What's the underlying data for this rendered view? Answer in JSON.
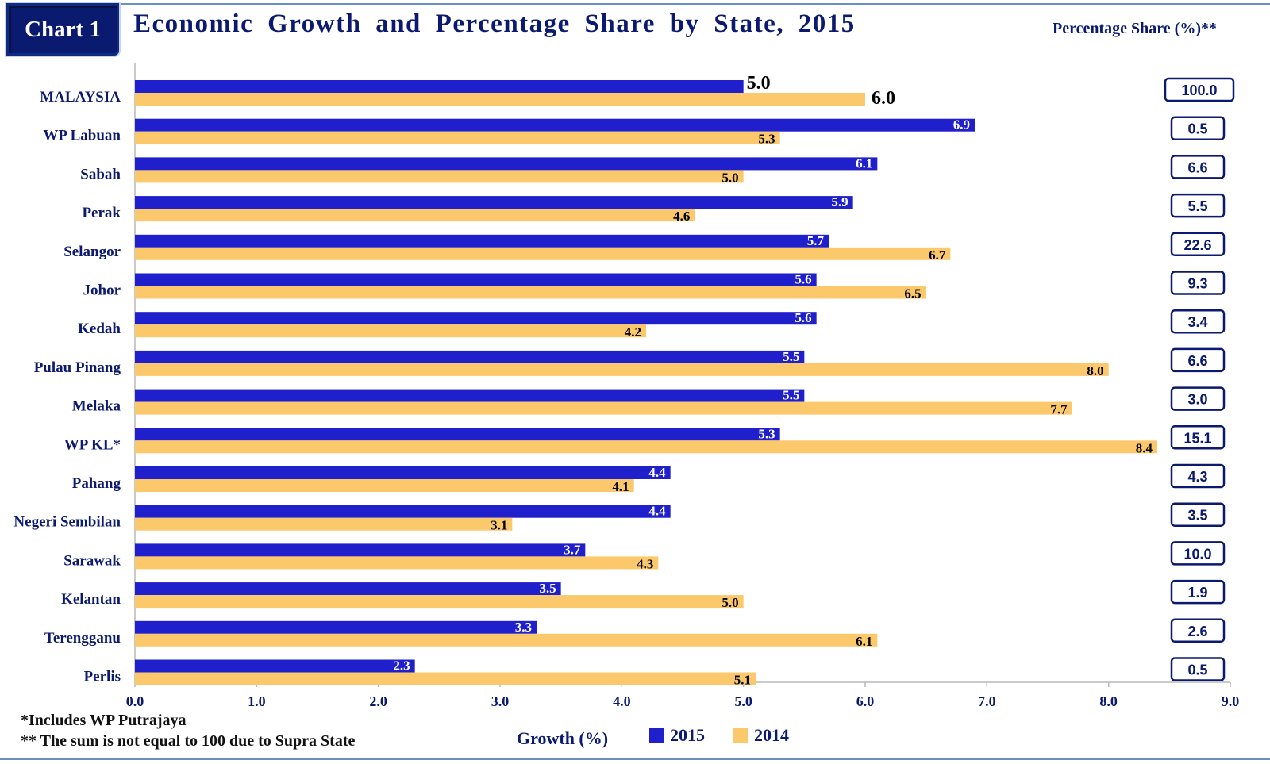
{
  "badge": "Chart 1",
  "title": "Economic Growth and Percentage Share by State, 2015",
  "share_title": "Percentage Share (%)**",
  "notes": [
    "*Includes WP Putrajaya",
    "** The sum is not equal to 100 due to Supra State"
  ],
  "colors": {
    "2015": "#1f1fcc",
    "2014": "#fbc96c",
    "frame": "#0b1a6e",
    "text": "#0b1a6e"
  },
  "chart_data": {
    "type": "bar",
    "orientation": "horizontal",
    "title": "Economic Growth and Percentage Share by State, 2015",
    "xlabel": "Growth (%)",
    "xlim": [
      0,
      9
    ],
    "xticks": [
      "0.0",
      "1.0",
      "2.0",
      "3.0",
      "4.0",
      "5.0",
      "6.0",
      "7.0",
      "8.0",
      "9.0"
    ],
    "legend_position": "bottom",
    "categories": [
      "MALAYSIA",
      "WP Labuan",
      "Sabah",
      "Perak",
      "Selangor",
      "Johor",
      "Kedah",
      "Pulau Pinang",
      "Melaka",
      "WP KL*",
      "Pahang",
      "Negeri Sembilan",
      "Sarawak",
      "Kelantan",
      "Terengganu",
      "Perlis"
    ],
    "series": [
      {
        "name": "2015",
        "values": [
          5.0,
          6.9,
          6.1,
          5.9,
          5.7,
          5.6,
          5.6,
          5.5,
          5.5,
          5.3,
          4.4,
          4.4,
          3.7,
          3.5,
          3.3,
          2.3
        ]
      },
      {
        "name": "2014",
        "values": [
          6.0,
          5.3,
          5.0,
          4.6,
          6.7,
          6.5,
          4.2,
          8.0,
          7.7,
          8.4,
          4.1,
          3.1,
          4.3,
          5.0,
          6.1,
          5.1
        ]
      }
    ],
    "value_labels": {
      "2015": [
        "5.0",
        "6.9",
        "6.1",
        "5.9",
        "5.7",
        "5.6",
        "5.6",
        "5.5",
        "5.5",
        "5.3",
        "4.4",
        "4.4",
        "3.7",
        "3.5",
        "3.3",
        "2.3"
      ],
      "2014": [
        "6.0",
        "5.3",
        "5.0",
        "4.6",
        "6.7",
        "6.5",
        "4.2",
        "8.0",
        "7.7",
        "8.4",
        "4.1",
        "3.1",
        "4.3",
        "5.0",
        "6.1",
        "5.1"
      ]
    },
    "percentage_share": [
      "100.0",
      "0.5",
      "6.6",
      "5.5",
      "22.6",
      "9.3",
      "3.4",
      "6.6",
      "3.0",
      "15.1",
      "4.3",
      "3.5",
      "10.0",
      "1.9",
      "2.6",
      "0.5"
    ]
  }
}
